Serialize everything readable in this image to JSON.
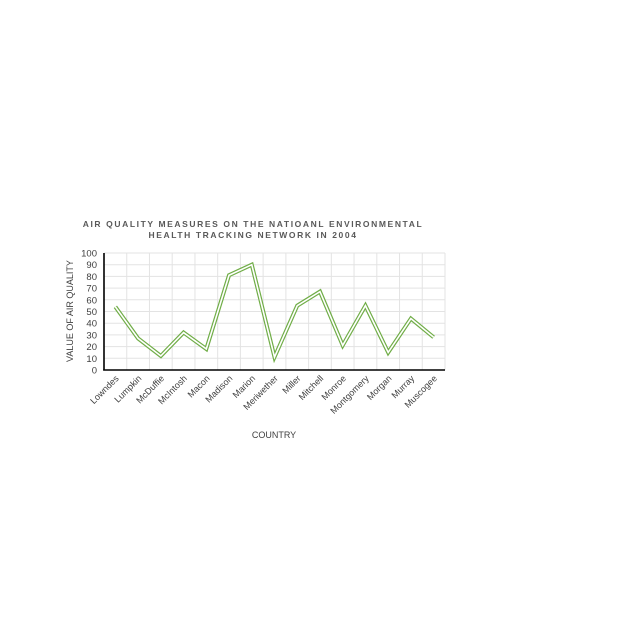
{
  "chart_data": {
    "type": "line",
    "title_lines": [
      "AIR QUALITY MEASURES ON THE NATIOANL ENVIRONMENTAL",
      "HEALTH TRACKING NETWORK IN 2004"
    ],
    "xlabel": "COUNTRY",
    "ylabel": "VALUE OF AIR QUALITY",
    "categories": [
      "Lowndes",
      "Lumpkin",
      "McDuffie",
      "McIntosh",
      "Macon",
      "Madison",
      "Marion",
      "Meriwether",
      "Miller",
      "Mitchell",
      "Monroe",
      "Montgomery",
      "Morgan",
      "Murray",
      "Muscogee"
    ],
    "values": [
      54,
      27,
      12,
      32,
      18,
      81,
      90,
      11,
      55,
      67,
      21,
      55,
      15,
      44,
      28
    ],
    "ylim": [
      0,
      100
    ],
    "yticks": [
      0,
      10,
      20,
      30,
      40,
      50,
      60,
      70,
      80,
      90,
      100
    ],
    "grid": true,
    "line_color": "#70ad47"
  }
}
